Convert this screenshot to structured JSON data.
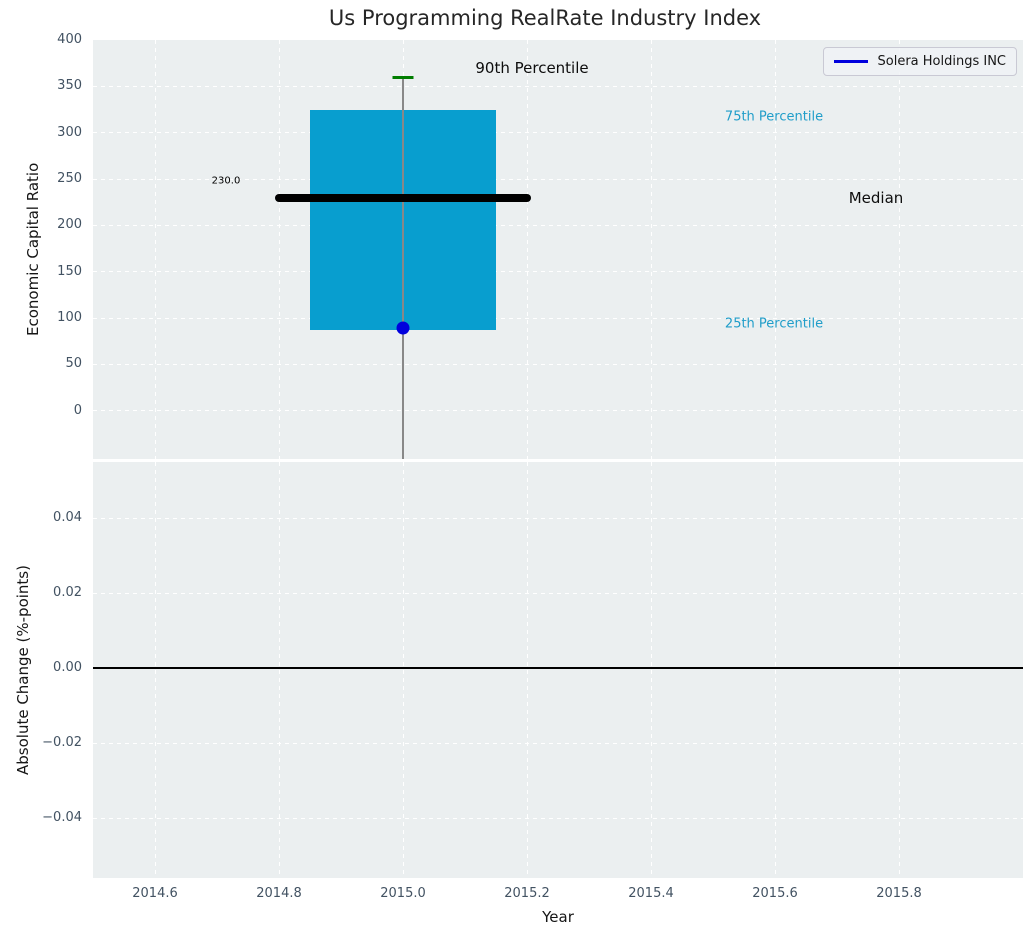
{
  "figure": {
    "title": "Us Programming RealRate Industry Index",
    "legend": {
      "label": "Solera Holdings INC"
    }
  },
  "colors": {
    "box_fill": "#089ecf",
    "percentile_text": "#1f9dc9",
    "cap_90th": "#007d00",
    "company_marker": "#0000dd",
    "median_line": "#000000",
    "whisker": "#888888",
    "axes_bg": "#ebeff0",
    "tick_text": "#425262"
  },
  "chart_data": [
    {
      "type": "box",
      "title": "Us Programming RealRate Industry Index",
      "ylabel": "Economic Capital Ratio",
      "xlim": [
        2014.5,
        2016.0
      ],
      "ylim": [
        -52,
        400
      ],
      "grid": true,
      "legend_position": "upper right",
      "yticks": [
        400,
        350,
        300,
        250,
        200,
        150,
        100,
        50,
        0
      ],
      "ytick_labels": [
        "400",
        "350",
        "300",
        "250",
        "200",
        "150",
        "100",
        "50",
        "0"
      ],
      "xticks": [
        2014.6,
        2014.8,
        2015.0,
        2015.2,
        2015.4,
        2015.6,
        2015.8
      ],
      "box": {
        "x_center": 2015.0,
        "x_left": 2014.85,
        "x_right": 2015.15,
        "q1": 87,
        "median": 230,
        "q3": 325,
        "p90": 360,
        "median_span": [
          2014.8,
          2015.2
        ]
      },
      "annotations": {
        "p90_label": "90th Percentile",
        "q3_label": "75th Percentile",
        "q1_label": "25th Percentile",
        "median_label": "Median",
        "median_value_label": "230.0"
      },
      "series": [
        {
          "name": "Solera Holdings INC",
          "x": 2015.0,
          "y": 89,
          "marker": "circle"
        }
      ]
    },
    {
      "type": "line",
      "ylabel": "Absolute Change (%-points)",
      "xlabel": "Year",
      "xlim": [
        2014.5,
        2016.0
      ],
      "ylim": [
        -0.056,
        0.055
      ],
      "grid": true,
      "zero_line": 0.0,
      "yticks": [
        0.04,
        0.02,
        0.0,
        -0.02,
        -0.04
      ],
      "ytick_labels": [
        "0.04",
        "0.02",
        "0.00",
        "−0.02",
        "−0.04"
      ],
      "xticks": [
        2014.6,
        2014.8,
        2015.0,
        2015.2,
        2015.4,
        2015.6,
        2015.8
      ],
      "xtick_labels": [
        "2014.6",
        "2014.8",
        "2015.0",
        "2015.2",
        "2015.4",
        "2015.6",
        "2015.8"
      ],
      "series": []
    }
  ]
}
